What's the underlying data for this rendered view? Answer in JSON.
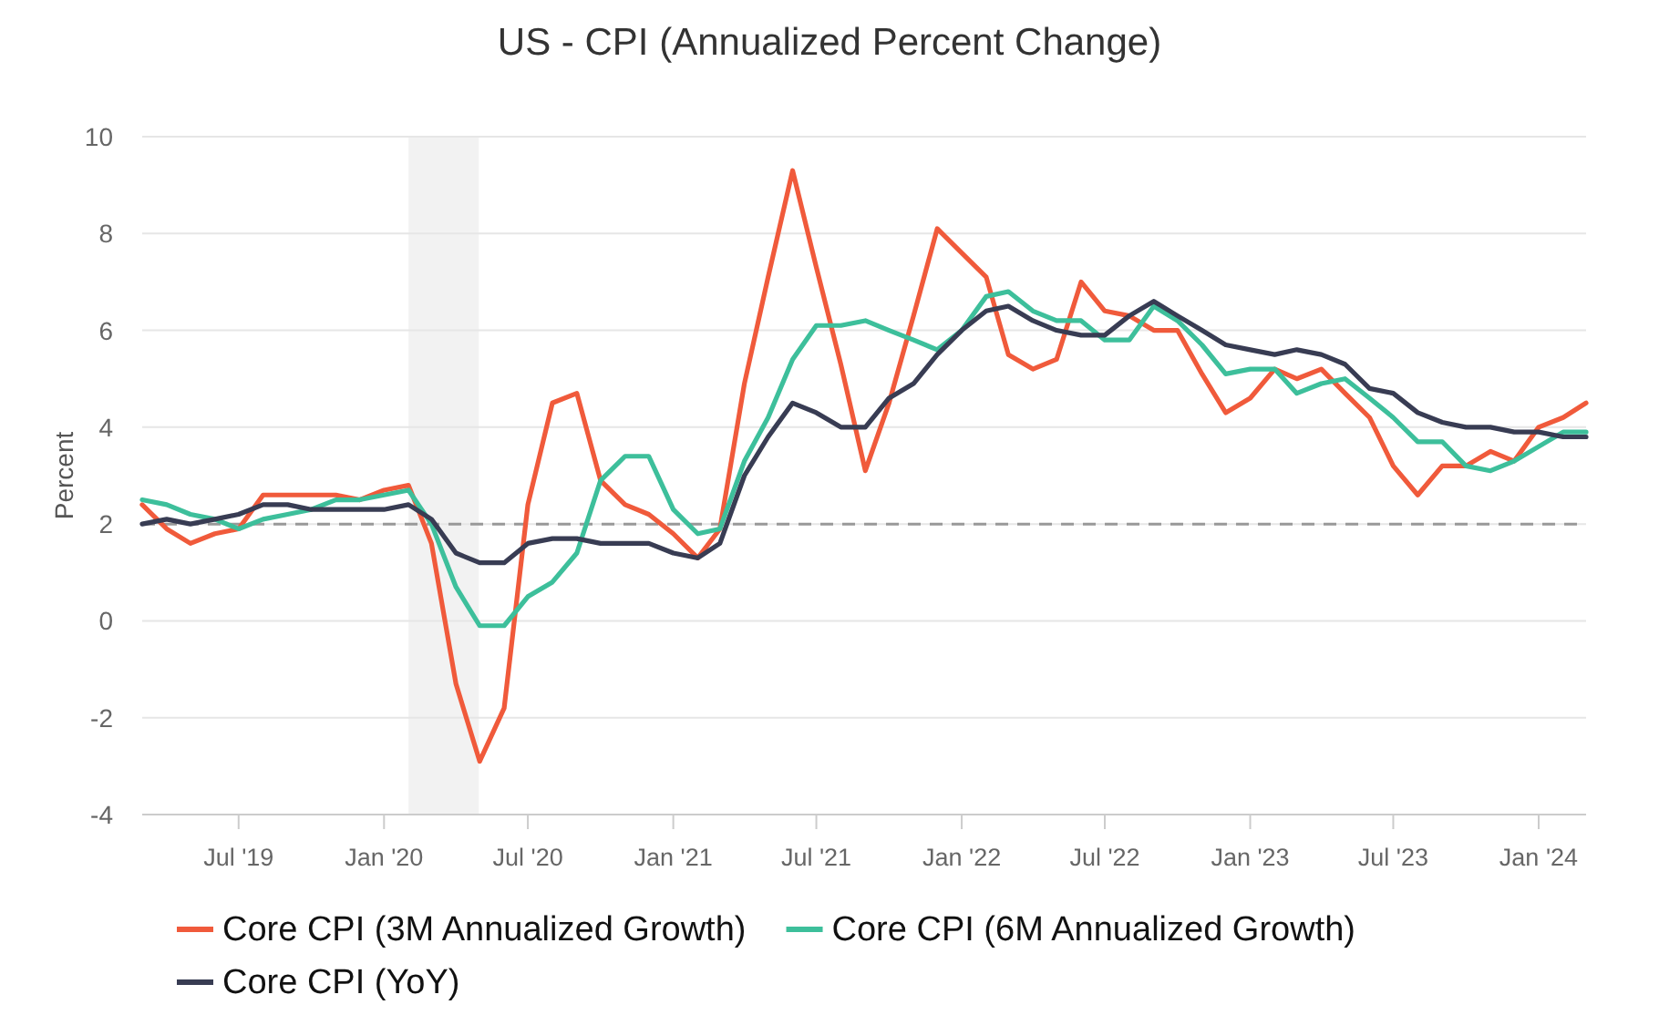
{
  "chart_data": {
    "type": "line",
    "title": "US - CPI (Annualized Percent Change)",
    "ylabel": "Percent",
    "x": [
      "2019-03",
      "2019-04",
      "2019-05",
      "2019-06",
      "2019-07",
      "2019-08",
      "2019-09",
      "2019-10",
      "2019-11",
      "2019-12",
      "2020-01",
      "2020-02",
      "2020-03",
      "2020-04",
      "2020-05",
      "2020-06",
      "2020-07",
      "2020-08",
      "2020-09",
      "2020-10",
      "2020-11",
      "2020-12",
      "2021-01",
      "2021-02",
      "2021-03",
      "2021-04",
      "2021-05",
      "2021-06",
      "2021-07",
      "2021-08",
      "2021-09",
      "2021-10",
      "2021-11",
      "2021-12",
      "2022-01",
      "2022-02",
      "2022-03",
      "2022-04",
      "2022-05",
      "2022-06",
      "2022-07",
      "2022-08",
      "2022-09",
      "2022-10",
      "2022-11",
      "2022-12",
      "2023-01",
      "2023-02",
      "2023-03",
      "2023-04",
      "2023-05",
      "2023-06",
      "2023-07",
      "2023-08",
      "2023-09",
      "2023-10",
      "2023-11",
      "2023-12",
      "2024-01",
      "2024-02",
      "2024-03"
    ],
    "series": [
      {
        "name": "Core CPI (3M Annualized Growth)",
        "color": "#f05a3b",
        "values": [
          2.4,
          1.9,
          1.6,
          1.8,
          1.9,
          2.6,
          2.6,
          2.6,
          2.6,
          2.5,
          2.7,
          2.8,
          1.6,
          -1.3,
          -2.9,
          -1.8,
          2.4,
          4.5,
          4.7,
          2.9,
          2.4,
          2.2,
          1.8,
          1.3,
          1.9,
          4.9,
          7.1,
          9.3,
          7.3,
          5.3,
          3.1,
          4.5,
          6.3,
          8.1,
          7.6,
          7.1,
          5.5,
          5.2,
          5.4,
          7.0,
          6.4,
          6.3,
          6.0,
          6.0,
          5.1,
          4.3,
          4.6,
          5.2,
          5.0,
          5.2,
          4.7,
          4.2,
          3.2,
          2.6,
          3.2,
          3.2,
          3.5,
          3.3,
          4.0,
          4.2,
          4.5
        ]
      },
      {
        "name": "Core CPI (6M Annualized Growth)",
        "color": "#3dbf9b",
        "values": [
          2.5,
          2.4,
          2.2,
          2.1,
          1.9,
          2.1,
          2.2,
          2.3,
          2.5,
          2.5,
          2.6,
          2.7,
          2.0,
          0.7,
          -0.1,
          -0.1,
          0.5,
          0.8,
          1.4,
          2.9,
          3.4,
          3.4,
          2.3,
          1.8,
          1.9,
          3.3,
          4.2,
          5.4,
          6.1,
          6.1,
          6.2,
          6.0,
          5.8,
          5.6,
          6.0,
          6.7,
          6.8,
          6.4,
          6.2,
          6.2,
          5.8,
          5.8,
          6.5,
          6.2,
          5.7,
          5.1,
          5.2,
          5.2,
          4.7,
          4.9,
          5.0,
          4.6,
          4.2,
          3.7,
          3.7,
          3.2,
          3.1,
          3.3,
          3.6,
          3.9,
          3.9
        ]
      },
      {
        "name": "Core CPI (YoY)",
        "color": "#383c53",
        "values": [
          2.0,
          2.1,
          2.0,
          2.1,
          2.2,
          2.4,
          2.4,
          2.3,
          2.3,
          2.3,
          2.3,
          2.4,
          2.1,
          1.4,
          1.2,
          1.2,
          1.6,
          1.7,
          1.7,
          1.6,
          1.6,
          1.6,
          1.4,
          1.3,
          1.6,
          3.0,
          3.8,
          4.5,
          4.3,
          4.0,
          4.0,
          4.6,
          4.9,
          5.5,
          6.0,
          6.4,
          6.5,
          6.2,
          6.0,
          5.9,
          5.9,
          6.3,
          6.6,
          6.3,
          6.0,
          5.7,
          5.6,
          5.5,
          5.6,
          5.5,
          5.3,
          4.8,
          4.7,
          4.3,
          4.1,
          4.0,
          4.0,
          3.9,
          3.9,
          3.8,
          3.8
        ]
      }
    ],
    "xlim": [
      "2019-03",
      "2024-03"
    ],
    "xticks": [
      {
        "value": "2019-07",
        "label": "Jul '19"
      },
      {
        "value": "2020-01",
        "label": "Jan '20"
      },
      {
        "value": "2020-07",
        "label": "Jul '20"
      },
      {
        "value": "2021-01",
        "label": "Jan '21"
      },
      {
        "value": "2021-07",
        "label": "Jul '21"
      },
      {
        "value": "2022-01",
        "label": "Jan '22"
      },
      {
        "value": "2022-07",
        "label": "Jul '22"
      },
      {
        "value": "2023-01",
        "label": "Jan '23"
      },
      {
        "value": "2023-07",
        "label": "Jul '23"
      },
      {
        "value": "2024-01",
        "label": "Jan '24"
      }
    ],
    "ylim": [
      -4,
      10
    ],
    "yticks": [
      -4,
      -2,
      0,
      2,
      4,
      6,
      8,
      10
    ],
    "grid": "y",
    "legend": "bottom",
    "ref_lines": [
      {
        "axis": "y",
        "value": 2,
        "color": "#999999",
        "line_style": "dashed"
      }
    ],
    "bands": [
      {
        "axis": "x",
        "from": "2020-02-01",
        "to": "2020-04-30",
        "color": "#f2f2f2"
      }
    ]
  }
}
